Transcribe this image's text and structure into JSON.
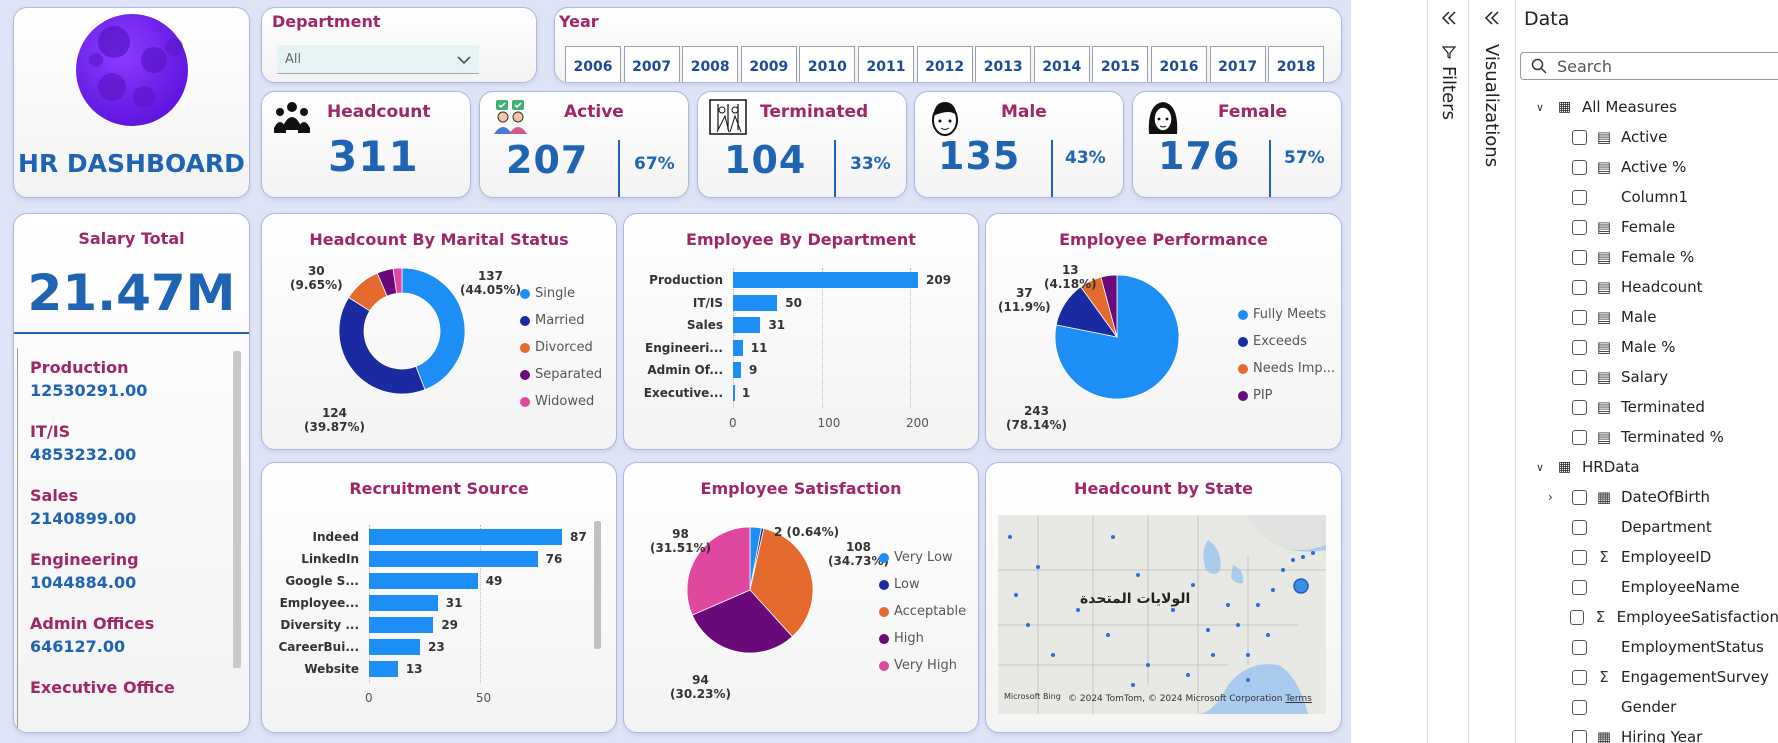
{
  "logo": {
    "title": "HR DASHBOARD"
  },
  "department_filter": {
    "label": "Department",
    "selected": "All"
  },
  "year_filter": {
    "label": "Year",
    "years": [
      "2006",
      "2007",
      "2008",
      "2009",
      "2010",
      "2011",
      "2012",
      "2013",
      "2014",
      "2015",
      "2016",
      "2017",
      "2018"
    ]
  },
  "kpis": {
    "headcount": {
      "label": "Headcount",
      "value": "311"
    },
    "active": {
      "label": "Active",
      "value": "207",
      "pct": "67%"
    },
    "terminated": {
      "label": "Terminated",
      "value": "104",
      "pct": "33%"
    },
    "male": {
      "label": "Male",
      "value": "135",
      "pct": "43%"
    },
    "female": {
      "label": "Female",
      "value": "176",
      "pct": "57%"
    }
  },
  "salary": {
    "title": "Salary Total",
    "total": "21.47M",
    "items": [
      {
        "name": "Production",
        "value": "12530291.00"
      },
      {
        "name": "IT/IS",
        "value": "4853232.00"
      },
      {
        "name": "Sales",
        "value": "2140899.00"
      },
      {
        "name": "Engineering",
        "value": "1044884.00"
      },
      {
        "name": "Admin Offices",
        "value": "646127.00"
      },
      {
        "name": "Executive Office",
        "value": ""
      }
    ]
  },
  "charts": {
    "marital": {
      "title": "Headcount By Marital Status",
      "legend": [
        "Single",
        "Married",
        "Divorced",
        "Separated",
        "Widowed"
      ],
      "labels": {
        "single": "137",
        "single_pct": "(44.05%)",
        "married": "124",
        "married_pct": "(39.87%)",
        "divorced": "30",
        "divorced_pct": "(9.65%)"
      }
    },
    "department": {
      "title": "Employee By Department",
      "ticks": [
        "0",
        "100",
        "200"
      ]
    },
    "performance": {
      "title": "Employee Performance",
      "legend": [
        "Fully Meets",
        "Exceeds",
        "Needs Imp...",
        "PIP"
      ],
      "labels": {
        "fm": "243",
        "fm_pct": "(78.14%)",
        "ex": "37",
        "ex_pct": "(11.9%)",
        "ni": "13",
        "ni_pct": "(4.18%)"
      }
    },
    "recruitment": {
      "title": "Recruitment Source",
      "ticks": [
        "0",
        "50"
      ]
    },
    "satisfaction": {
      "title": "Employee Satisfaction",
      "legend": [
        "Very Low",
        "Low",
        "Acceptable",
        "High",
        "Very High"
      ],
      "labels": {
        "low": "2 (0.64%)",
        "acc": "108",
        "acc_pct": "(34.73%)",
        "high": "94",
        "high_pct": "(30.23%)",
        "vhigh": "98",
        "vhigh_pct": "(31.51%)"
      }
    },
    "state": {
      "title": "Headcount by State",
      "map_label": "الولايات المتحدة",
      "copyright": "© 2024 TomTom, © 2024 Microsoft Corporation",
      "terms": "Terms",
      "bing": "Microsoft Bing"
    }
  },
  "chart_data": [
    {
      "type": "pie",
      "title": "Headcount By Marital Status",
      "categories": [
        "Single",
        "Married",
        "Divorced",
        "Separated",
        "Widowed"
      ],
      "values": [
        137,
        124,
        30,
        13,
        7
      ],
      "colors": [
        "#1e8ef7",
        "#1a2aa0",
        "#e46a2e",
        "#6a0a7a",
        "#e0479e"
      ]
    },
    {
      "type": "bar",
      "title": "Employee By Department",
      "categories": [
        "Production",
        "IT/IS",
        "Sales",
        "Engineeri...",
        "Admin Of...",
        "Executive..."
      ],
      "values": [
        209,
        50,
        31,
        11,
        9,
        1
      ],
      "xlim": [
        0,
        209
      ]
    },
    {
      "type": "pie",
      "title": "Employee Performance",
      "categories": [
        "Fully Meets",
        "Exceeds",
        "Needs Imp...",
        "PIP"
      ],
      "values": [
        243,
        37,
        18,
        13
      ],
      "colors": [
        "#1e8ef7",
        "#1a2aa0",
        "#e46a2e",
        "#6a0a7a"
      ]
    },
    {
      "type": "bar",
      "title": "Recruitment Source",
      "categories": [
        "Indeed",
        "LinkedIn",
        "Google S...",
        "Employee...",
        "Diversity ...",
        "CareerBui...",
        "Website"
      ],
      "values": [
        87,
        76,
        49,
        31,
        29,
        23,
        13
      ],
      "xlim": [
        0,
        87
      ]
    },
    {
      "type": "pie",
      "title": "Employee Satisfaction",
      "categories": [
        "Very Low",
        "Low",
        "Acceptable",
        "High",
        "Very High"
      ],
      "values": [
        9,
        2,
        108,
        94,
        98
      ],
      "colors": [
        "#1e8ef7",
        "#1a2aa0",
        "#e46a2e",
        "#6a0a7a",
        "#e0479e"
      ]
    }
  ],
  "panes": {
    "filters": "Filters",
    "visualizations": "Visualizations",
    "data": "Data",
    "search_placeholder": "Search",
    "tables": [
      {
        "name": "All Measures",
        "fields": [
          {
            "name": "Active",
            "icon": "calculator-icon"
          },
          {
            "name": "Active %",
            "icon": "calculator-icon"
          },
          {
            "name": "Column1",
            "icon": ""
          },
          {
            "name": "Female",
            "icon": "calculator-icon"
          },
          {
            "name": "Female %",
            "icon": "calculator-icon"
          },
          {
            "name": "Headcount",
            "icon": "calculator-icon"
          },
          {
            "name": "Male",
            "icon": "calculator-icon"
          },
          {
            "name": "Male %",
            "icon": "calculator-icon"
          },
          {
            "name": "Salary",
            "icon": "calculator-icon"
          },
          {
            "name": "Terminated",
            "icon": "calculator-icon"
          },
          {
            "name": "Terminated %",
            "icon": "calculator-icon"
          }
        ]
      },
      {
        "name": "HRData",
        "fields": [
          {
            "name": "DateOfBirth",
            "icon": "calendar-icon"
          },
          {
            "name": "Department",
            "icon": ""
          },
          {
            "name": "EmployeeID",
            "icon": "sigma-icon"
          },
          {
            "name": "EmployeeName",
            "icon": ""
          },
          {
            "name": "EmployeeSatisfaction",
            "icon": "sigma-icon"
          },
          {
            "name": "EmploymentStatus",
            "icon": ""
          },
          {
            "name": "EngagementSurvey",
            "icon": "sigma-icon"
          },
          {
            "name": "Gender",
            "icon": ""
          },
          {
            "name": "Hiring Year",
            "icon": "calendar-icon"
          }
        ]
      }
    ]
  }
}
